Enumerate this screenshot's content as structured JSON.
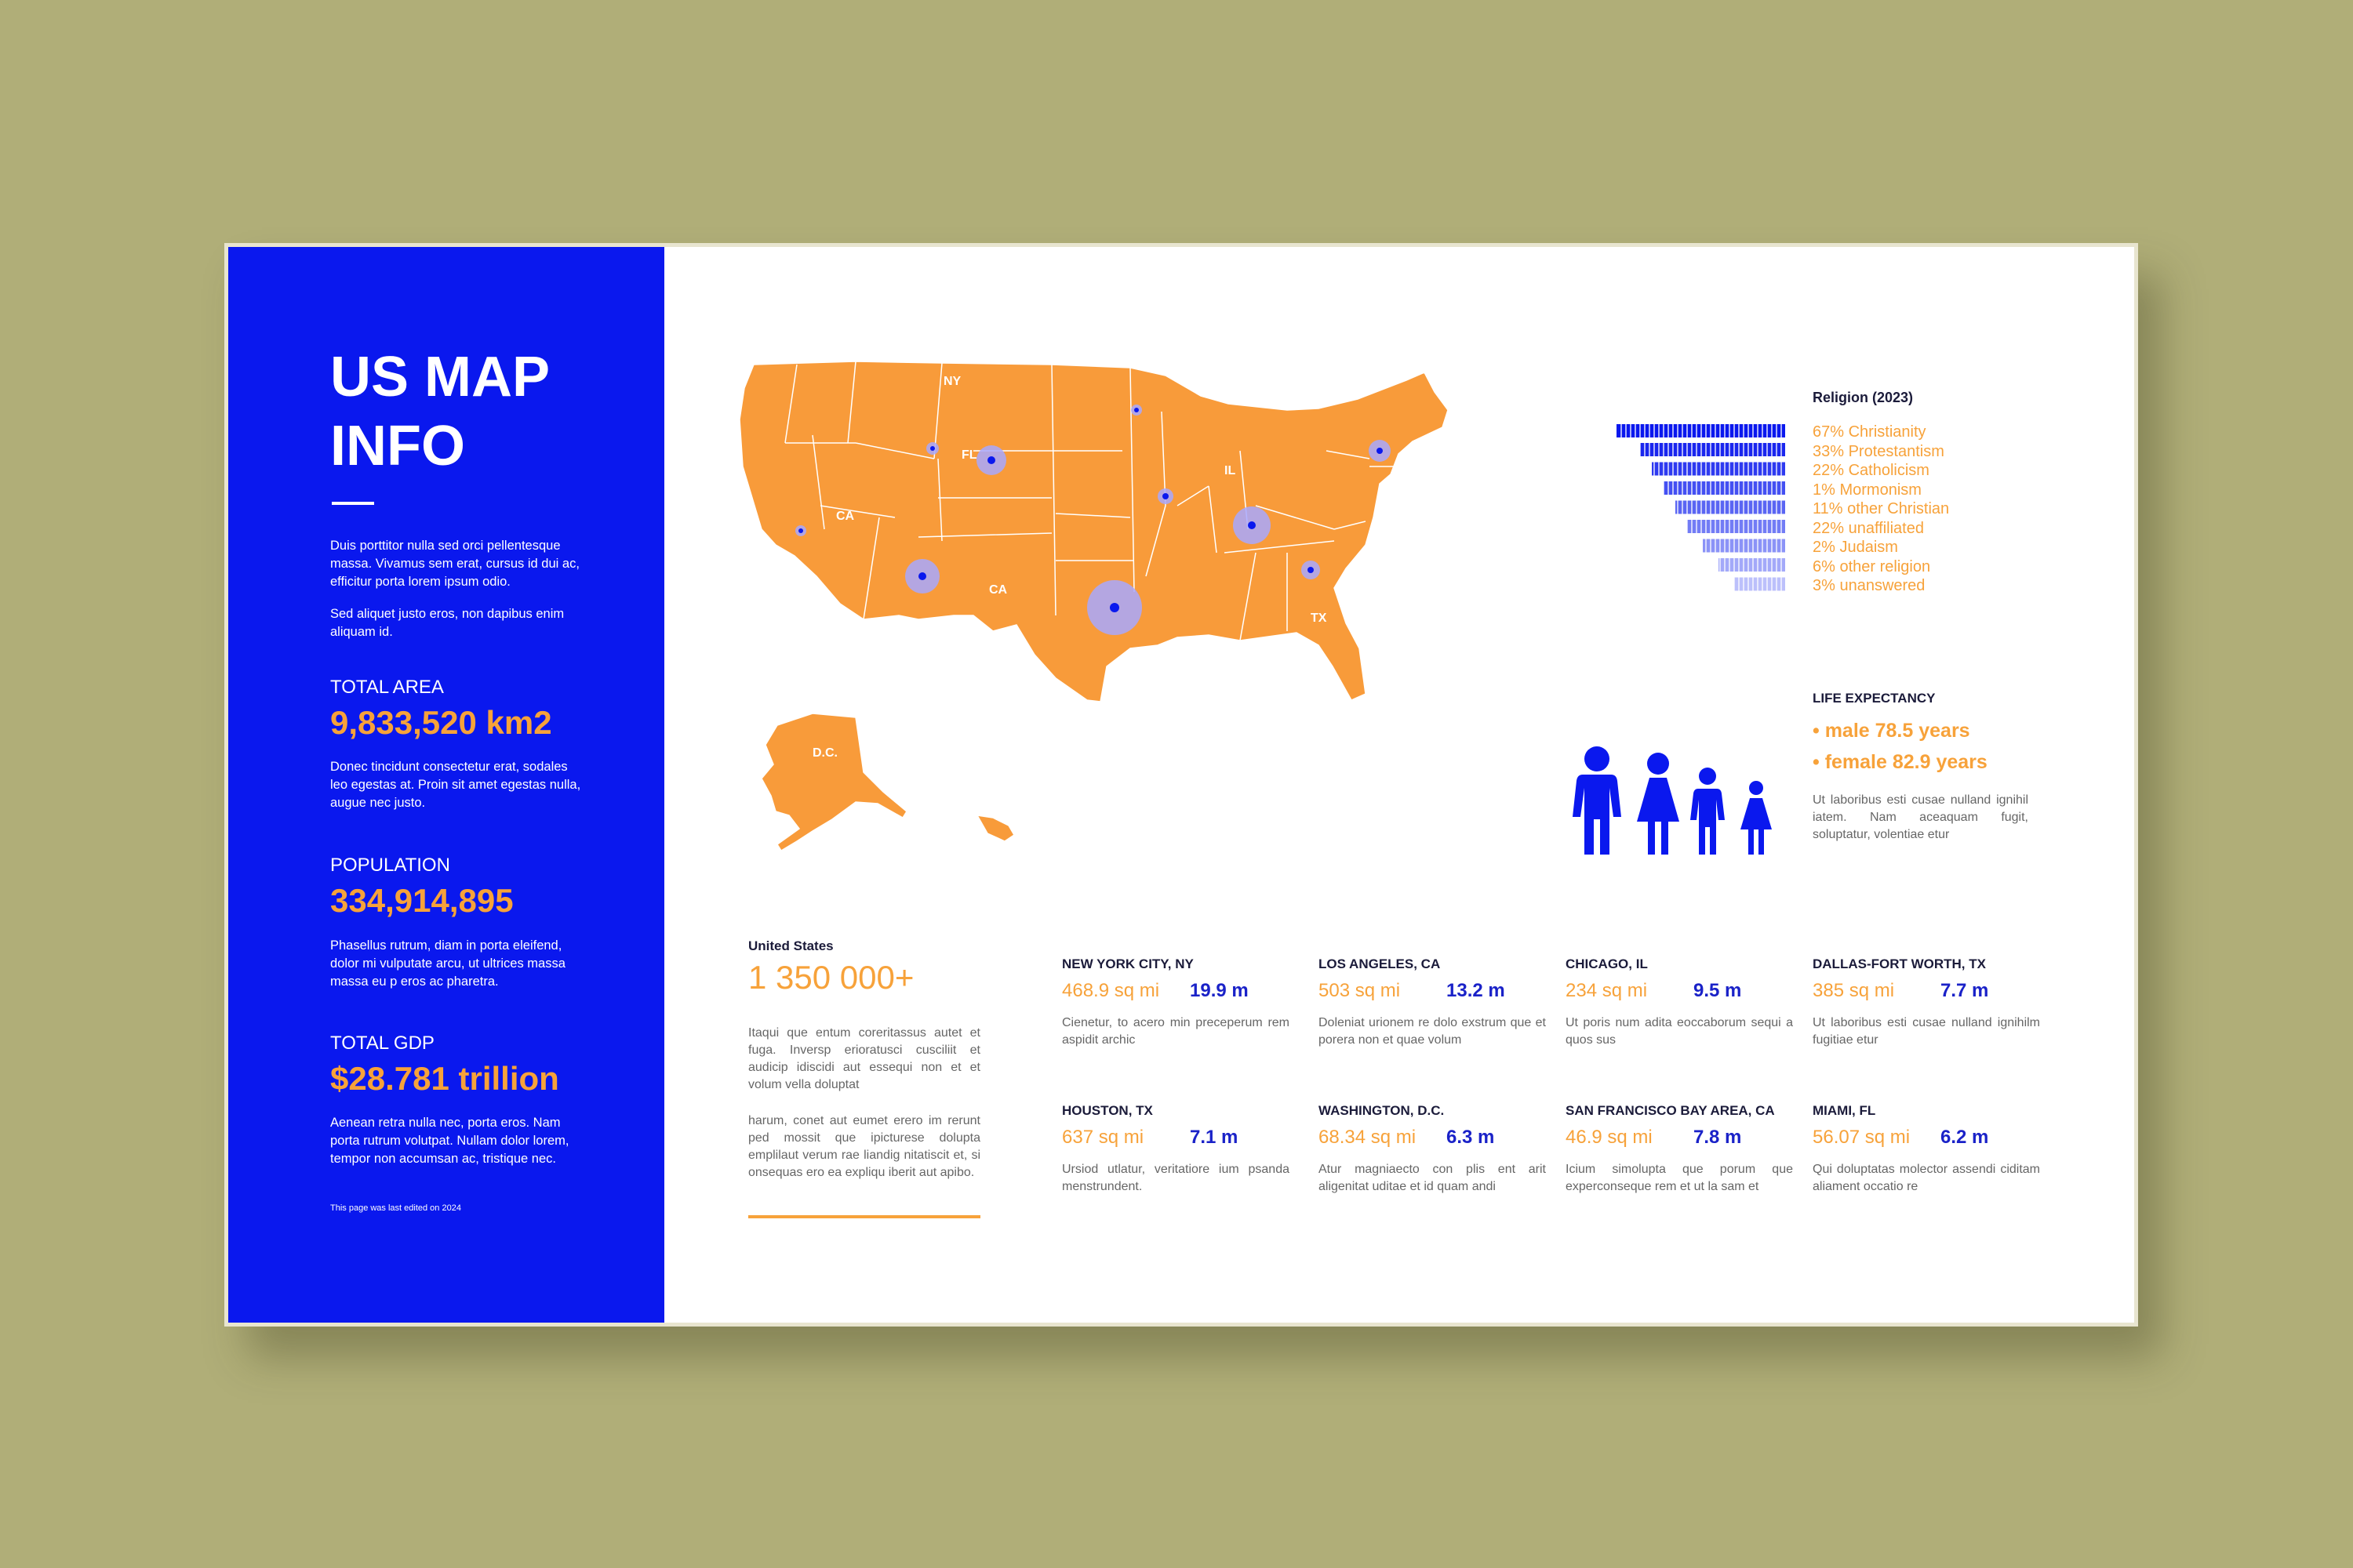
{
  "panel": {
    "title_line1": "US MAP",
    "title_line2": "INFO",
    "intro_p1": "Duis porttitor nulla sed orci pellentesque massa. Vivamus sem erat, cursus id dui ac, efficitur porta lorem ipsum odio.",
    "intro_p2": "Sed aliquet justo eros, non dapibus enim aliquam id.",
    "area_label": "TOTAL AREA",
    "area_value": "9,833,520 km2",
    "area_desc": "Donec tincidunt consectetur erat, sodales leo egestas at. Proin sit amet egestas nulla, augue nec justo.",
    "pop_label": "POPULATION",
    "pop_value": "334,914,895",
    "pop_desc": "Phasellus rutrum, diam in porta eleifend, dolor mi vulputate arcu, ut ultrices massa massa eu p eros ac pharetra.",
    "gdp_label": "TOTAL GDP",
    "gdp_value": "$28.781 trillion",
    "gdp_desc": "Aenean retra nulla nec, porta eros. Nam porta rutrum volutpat. Nullam dolor lorem, tempor non accumsan ac, tristique nec.",
    "footnote": "This page was last edited on 2024"
  },
  "map": {
    "labels": [
      "NY",
      "FL",
      "IL",
      "CA",
      "CA",
      "TX",
      "D.C."
    ],
    "fill": "#f89b3a",
    "marker_color": "#0a18ee"
  },
  "religion": {
    "title": "Religion (2023)",
    "items": [
      "67% Christianity",
      "33% Protestantism",
      "22% Catholicism",
      "1% Mormonism",
      "11% other Christian",
      "22% unaffiliated",
      "2% Judaism",
      "6% other religion",
      "3% unanswered"
    ]
  },
  "life": {
    "title": "LIFE EXPECTANCY",
    "male": "• male 78.5 years",
    "female": "• female 82.9 years",
    "desc": "Ut laboribus esti cusae nulland ignihil iatem. Nam aceaquam fugit, soluptatur, volentiae etur"
  },
  "us": {
    "label": "United States",
    "value": "1 350 000+",
    "desc1": "Itaqui que entum coreritassus autet et fuga. Inversp erioratusci cusciliit et audicip idiscidi aut essequi non et et volum vella doluptat",
    "desc2": "harum, conet aut eumet erero im rerunt ped mossit que ipicturese dolupta emplilaut verum rae liandig nitatiscit et, si onsequas ero ea expliqu iberit aut apibo."
  },
  "cities": [
    {
      "name": "NEW YORK CITY, NY",
      "area": "468.9 sq mi",
      "pop": "19.9 m",
      "desc": "Cienetur, to acero min preceperum rem aspidit archic"
    },
    {
      "name": "LOS ANGELES, CA",
      "area": "503  sq mi",
      "pop": "13.2 m",
      "desc": "Doleniat urionem re dolo exstrum que et porera non et quae volum"
    },
    {
      "name": "CHICAGO, IL",
      "area": "234  sq mi",
      "pop": "9.5 m",
      "desc": "Ut poris num adita eoccaborum sequi a quos sus"
    },
    {
      "name": "DALLAS-FORT WORTH, TX",
      "area": "385  sq mi",
      "pop": "7.7 m",
      "desc": "Ut laboribus esti cusae nulland ignihilm fugitiae etur"
    },
    {
      "name": "HOUSTON, TX",
      "area": "637  sq mi",
      "pop": "7.1 m",
      "desc": "Ursiod utlatur, veritatiore ium psanda menstrundent."
    },
    {
      "name": "WASHINGTON, D.C.",
      "area": "68.34 sq mi",
      "pop": "6.3 m",
      "desc": "Atur magniaecto con plis ent arit aligenitat uditae et id quam andi"
    },
    {
      "name": "SAN FRANCISCO BAY AREA, CA",
      "area": "46.9 sq mi",
      "pop": "7.8 m",
      "desc": "Icium simolupta que porum que experconseque rem et ut la sam et"
    },
    {
      "name": "MIAMI, FL",
      "area": "56.07 sq mi",
      "pop": "6.2 m",
      "desc": "Qui doluptatas molector assendi ciditam aliament occatio re"
    }
  ]
}
